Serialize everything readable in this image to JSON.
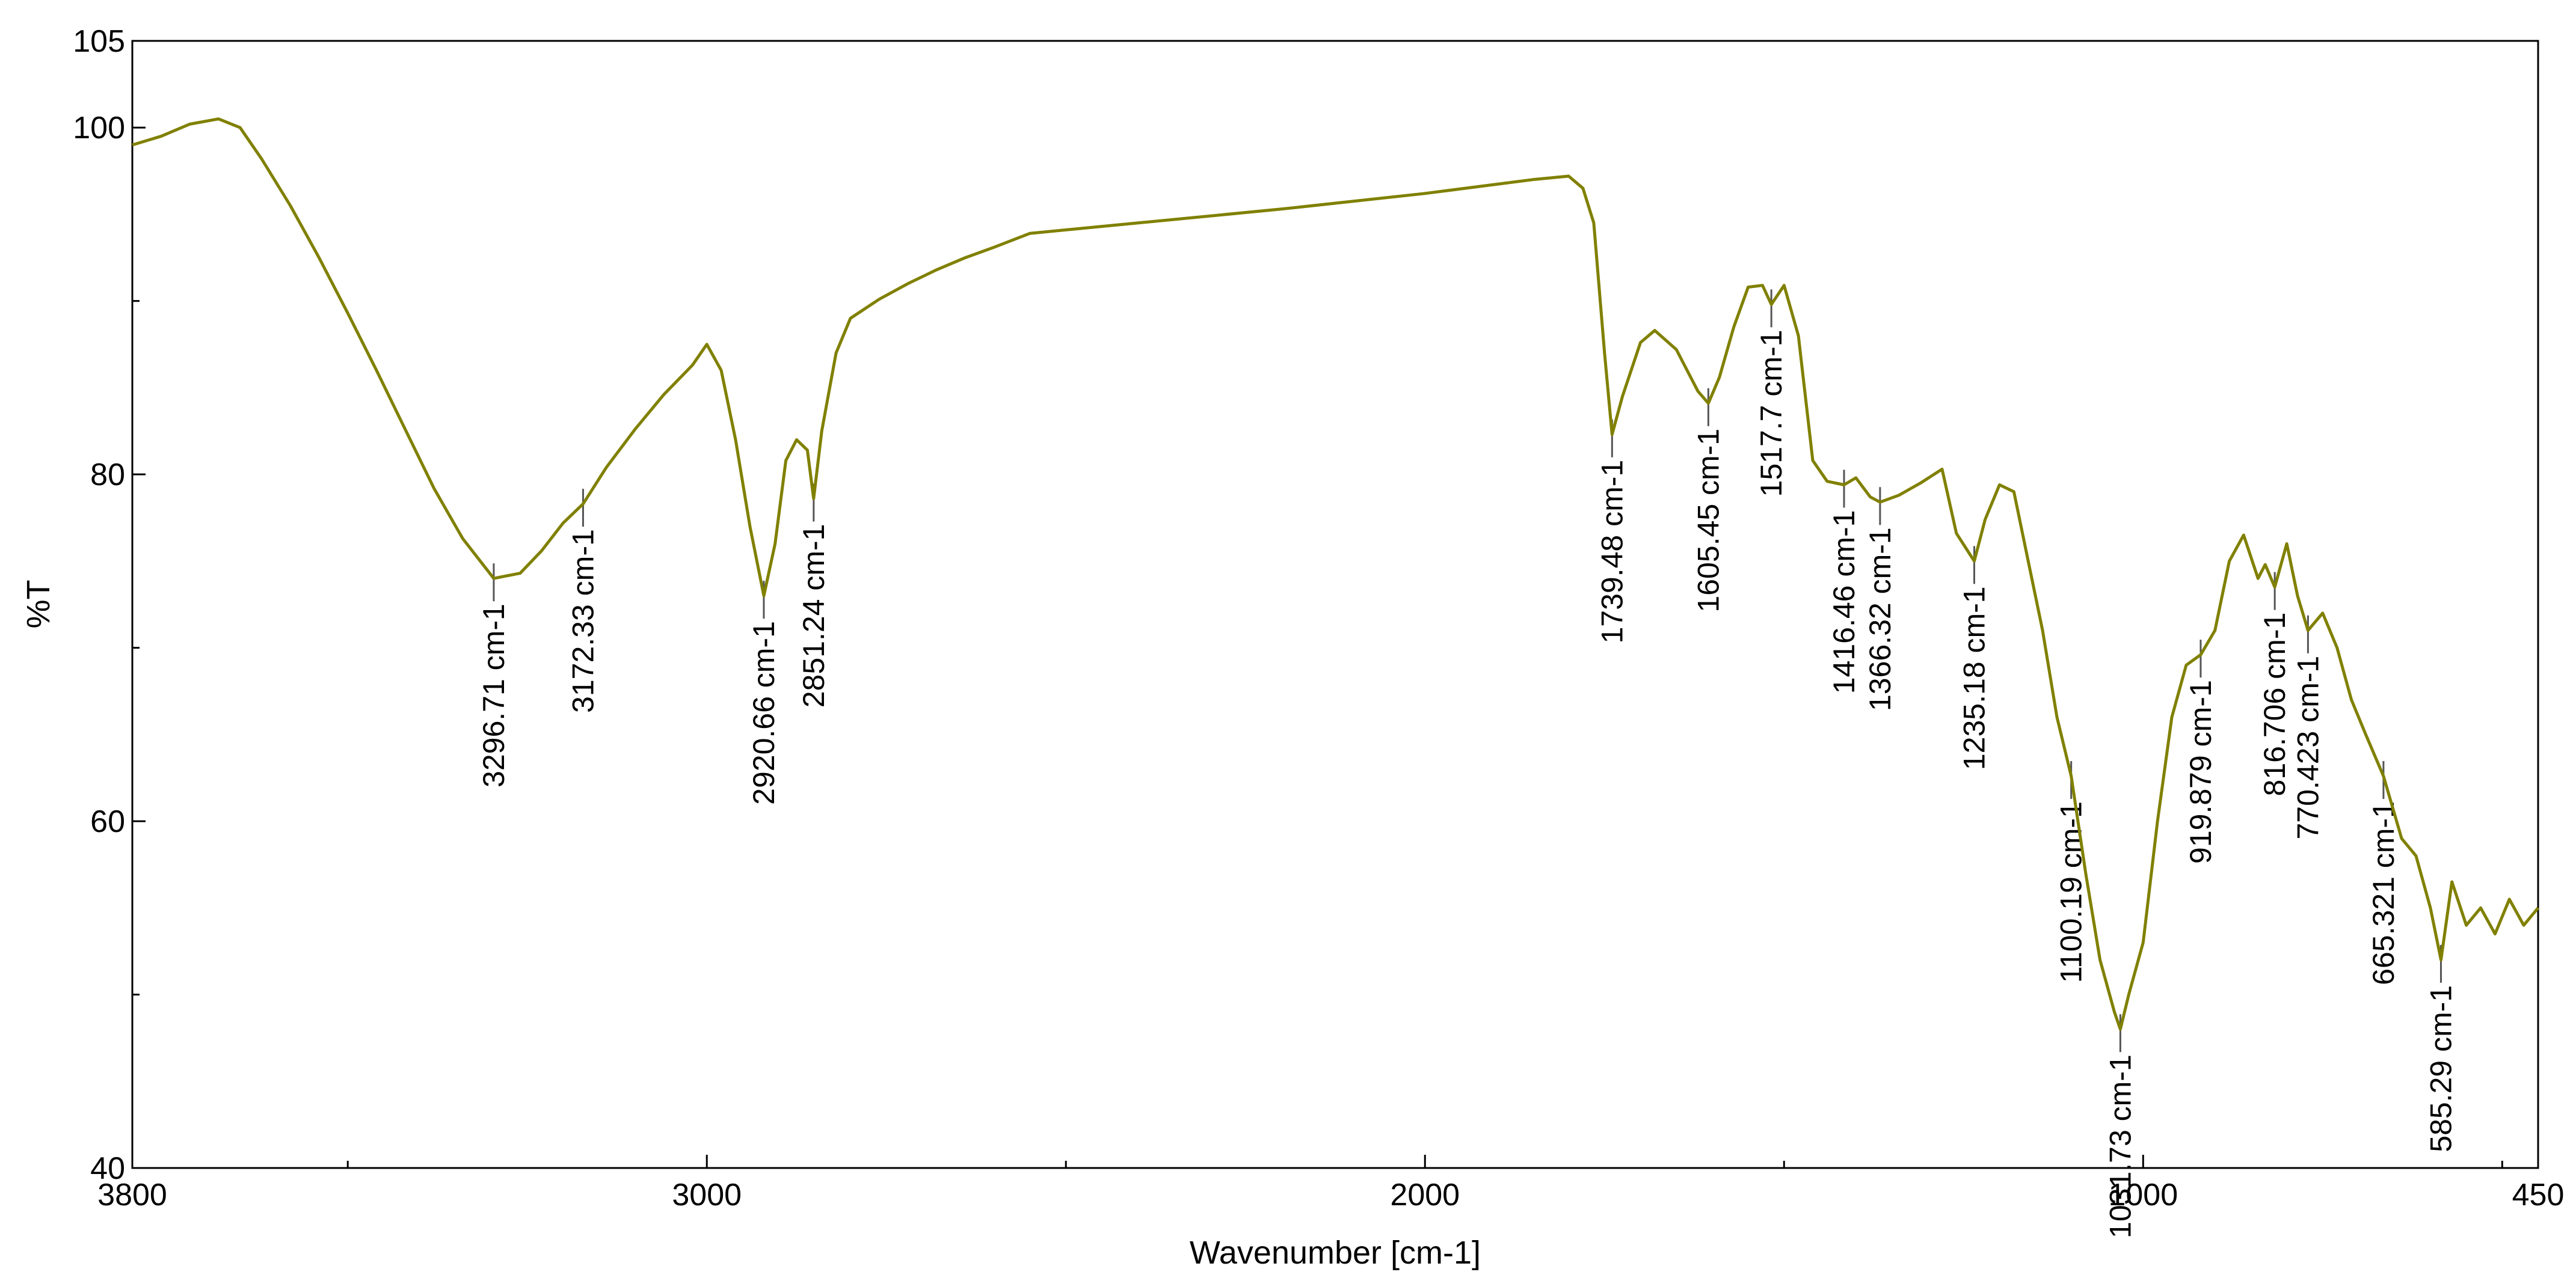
{
  "chart_data": {
    "type": "line",
    "title": "",
    "xlabel": "Wavenumber [cm-1]",
    "ylabel": "%T",
    "xlim": [
      3800,
      450
    ],
    "ylim": [
      40,
      105
    ],
    "x_reversed": true,
    "grid": false,
    "legend": "none",
    "line_color": "#808000",
    "x_ticks": [
      3800,
      3000,
      2000,
      1000,
      450
    ],
    "x_tick_labels": [
      "3800",
      "3000",
      "2000",
      "1000",
      "450"
    ],
    "x_minor_ticks": [
      3500,
      2500,
      1500,
      500
    ],
    "y_ticks": [
      40,
      60,
      80,
      100,
      105
    ],
    "y_tick_labels": [
      "40",
      "60",
      "80",
      "100",
      "105"
    ],
    "y_minor_ticks": [
      50,
      70,
      90
    ],
    "series": [
      {
        "x": [
          3800,
          3760,
          3720,
          3680,
          3650,
          3620,
          3580,
          3540,
          3500,
          3460,
          3420,
          3380,
          3340,
          3296.71,
          3260,
          3230,
          3200,
          3172.33,
          3140,
          3100,
          3060,
          3020,
          3000,
          2980,
          2960,
          2940,
          2920.66,
          2905,
          2890,
          2875,
          2860,
          2851.24,
          2840,
          2820,
          2800,
          2760,
          2720,
          2680,
          2640,
          2600,
          2550,
          2400,
          2200,
          2000,
          1850,
          1800,
          1780,
          1765,
          1750,
          1739.48,
          1725,
          1700,
          1680,
          1650,
          1620,
          1605.45,
          1590,
          1570,
          1550,
          1530,
          1517.7,
          1500,
          1480,
          1460,
          1440,
          1416.46,
          1400,
          1380,
          1366.32,
          1340,
          1310,
          1280,
          1260,
          1235.18,
          1220,
          1200,
          1180,
          1160,
          1140,
          1120,
          1100.19,
          1080,
          1060,
          1040,
          1031.73,
          1020,
          1000,
          980,
          960,
          940,
          919.879,
          900,
          880,
          860,
          840,
          830,
          816.706,
          800,
          785,
          770.423,
          750,
          730,
          710,
          690,
          665.321,
          640,
          620,
          600,
          585.29,
          570,
          550,
          530,
          510,
          490,
          470,
          450
        ],
        "y": [
          99.0,
          99.5,
          100.2,
          100.5,
          100.0,
          98.2,
          95.5,
          92.5,
          89.3,
          86.0,
          82.6,
          79.2,
          76.3,
          74.0,
          74.3,
          75.6,
          77.2,
          78.3,
          80.4,
          82.6,
          84.6,
          86.3,
          87.5,
          86.0,
          82.0,
          77.0,
          73.0,
          76.0,
          80.8,
          82.0,
          81.4,
          78.6,
          82.5,
          87.0,
          89.0,
          90.1,
          91.0,
          91.8,
          92.5,
          93.1,
          93.9,
          94.5,
          95.3,
          96.2,
          97.0,
          97.2,
          96.5,
          94.5,
          87.0,
          82.3,
          84.5,
          87.6,
          88.3,
          87.2,
          84.8,
          84.1,
          85.6,
          88.5,
          90.8,
          90.9,
          89.8,
          90.9,
          88.0,
          80.8,
          79.6,
          79.4,
          79.8,
          78.7,
          78.4,
          78.8,
          79.5,
          80.3,
          76.6,
          75.0,
          77.4,
          79.4,
          79.0,
          75.0,
          71.0,
          66.0,
          62.6,
          57.0,
          52.0,
          49.0,
          48.0,
          50.0,
          53.0,
          60.0,
          66.0,
          69.0,
          69.6,
          71.0,
          75.0,
          76.5,
          74.0,
          74.8,
          73.5,
          76.0,
          73.0,
          71.0,
          72.0,
          70.0,
          67.0,
          65.0,
          62.6,
          59.0,
          58.0,
          55.0,
          52.0,
          56.5,
          54.0,
          55.0,
          53.5,
          55.5,
          54.0,
          55.0
        ]
      }
    ],
    "annotations": [
      {
        "x": 3296.71,
        "y": 74.0,
        "label": "3296.71 cm-1"
      },
      {
        "x": 3172.33,
        "y": 78.3,
        "label": "3172.33 cm-1"
      },
      {
        "x": 2920.66,
        "y": 73.0,
        "label": "2920.66 cm-1"
      },
      {
        "x": 2851.24,
        "y": 78.6,
        "label": "2851.24 cm-1"
      },
      {
        "x": 1739.48,
        "y": 82.3,
        "label": "1739.48 cm-1"
      },
      {
        "x": 1605.45,
        "y": 84.1,
        "label": "1605.45 cm-1"
      },
      {
        "x": 1517.7,
        "y": 89.8,
        "label": "1517.7 cm-1"
      },
      {
        "x": 1416.46,
        "y": 79.4,
        "label": "1416.46 cm-1"
      },
      {
        "x": 1366.32,
        "y": 78.4,
        "label": "1366.32 cm-1"
      },
      {
        "x": 1235.18,
        "y": 75.0,
        "label": "1235.18 cm-1"
      },
      {
        "x": 1100.19,
        "y": 62.6,
        "label": "1100.19 cm-1"
      },
      {
        "x": 1031.73,
        "y": 48.0,
        "label": "1031.73 cm-1"
      },
      {
        "x": 919.879,
        "y": 69.6,
        "label": "919.879 cm-1"
      },
      {
        "x": 816.706,
        "y": 73.5,
        "label": "816.706 cm-1"
      },
      {
        "x": 770.423,
        "y": 71.0,
        "label": "770.423 cm-1"
      },
      {
        "x": 665.321,
        "y": 62.6,
        "label": "665.321 cm-1"
      },
      {
        "x": 585.29,
        "y": 52.0,
        "label": "585.29 cm-1"
      }
    ]
  }
}
